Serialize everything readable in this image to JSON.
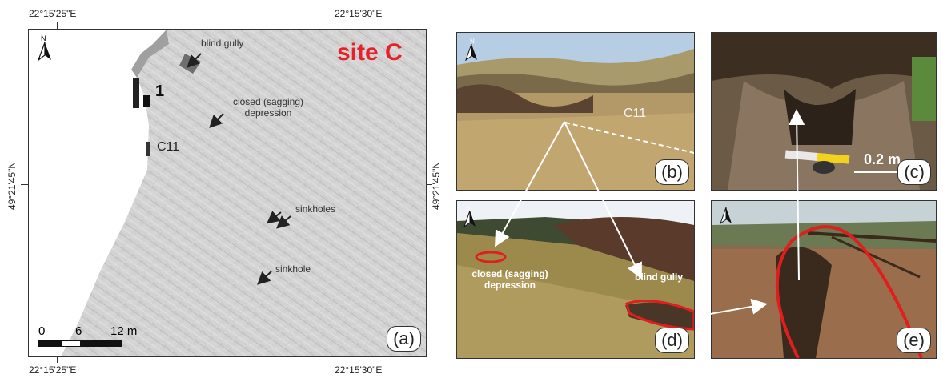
{
  "coords": {
    "top_left": "22°15'25\"E",
    "top_right": "22°15'30\"E",
    "bottom_left": "22°15'25\"E",
    "bottom_right": "22°15'30\"E",
    "left_lat": "49°21'45\"N",
    "right_lat": "49°21'45\"N"
  },
  "map": {
    "site_title": "site C",
    "site_title_color": "#e8202a",
    "north": "N",
    "label_1": "1",
    "label_c11": "C11",
    "annotations": {
      "blind_gully": "blind gully",
      "closed_line1": "closed (sagging)",
      "closed_line2": "depression",
      "sinkholes": "sinkholes",
      "sinkhole": "sinkhole"
    },
    "scale": {
      "zero": "0",
      "mid": "6",
      "end": "12 m"
    },
    "panel_label": "(a)"
  },
  "photos": {
    "b": {
      "label": "(b)",
      "c11": "C11",
      "north": "N"
    },
    "c": {
      "label": "(c)",
      "scale": "0.2 m"
    },
    "d": {
      "label": "(d)",
      "closed_line1": "closed (sagging)",
      "closed_line2": "depression",
      "blind_gully": "blind gully",
      "north": "N"
    },
    "e": {
      "label": "(e)"
    }
  },
  "colors": {
    "highlight_red": "#e01e1e"
  }
}
